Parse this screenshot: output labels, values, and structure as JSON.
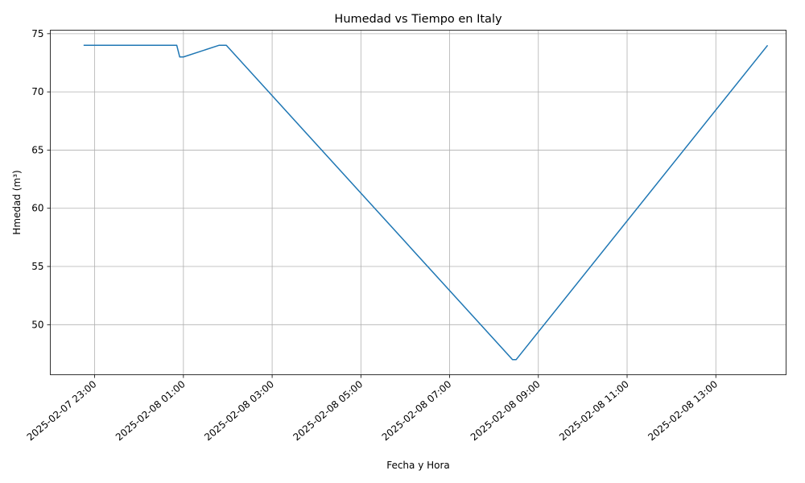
{
  "chart_data": {
    "type": "line",
    "title": "Humedad vs Tiempo en Italy",
    "xlabel": "Fecha y Hora",
    "ylabel": "Hmedad (m³)",
    "x_axis": {
      "kind": "datetime",
      "range": [
        "2025-02-07 22:00",
        "2025-02-08 14:35"
      ],
      "ticks": [
        "2025-02-07 23:00",
        "2025-02-08 01:00",
        "2025-02-08 03:00",
        "2025-02-08 05:00",
        "2025-02-08 07:00",
        "2025-02-08 09:00",
        "2025-02-08 11:00",
        "2025-02-08 13:00"
      ],
      "tick_rotation_deg": 40
    },
    "y_axis": {
      "range": [
        45.7,
        75.3
      ],
      "ticks": [
        50,
        55,
        60,
        65,
        70,
        75
      ]
    },
    "grid": true,
    "series": [
      {
        "color": "#1f77b4",
        "points": [
          {
            "x": "2025-02-07 22:45",
            "y": 74
          },
          {
            "x": "2025-02-08 00:51",
            "y": 74
          },
          {
            "x": "2025-02-08 00:55",
            "y": 73
          },
          {
            "x": "2025-02-08 01:00",
            "y": 73
          },
          {
            "x": "2025-02-08 01:48",
            "y": 74
          },
          {
            "x": "2025-02-08 01:58",
            "y": 74
          },
          {
            "x": "2025-02-08 08:25",
            "y": 47
          },
          {
            "x": "2025-02-08 08:30",
            "y": 47
          },
          {
            "x": "2025-02-08 14:10",
            "y": 74
          }
        ]
      }
    ]
  }
}
